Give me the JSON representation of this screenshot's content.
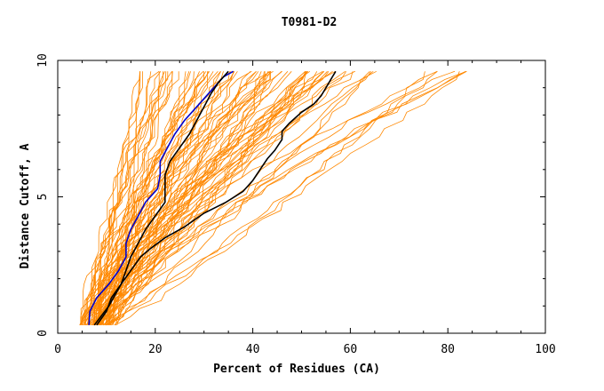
{
  "chart_data": {
    "type": "line",
    "title": "T0981-D2",
    "xlabel": "Percent of Residues (CA)",
    "ylabel": "Distance Cutoff, A",
    "xlim": [
      0,
      100
    ],
    "ylim": [
      0,
      10
    ],
    "x_ticks": [
      "0",
      "20",
      "40",
      "60",
      "80",
      "100"
    ],
    "y_ticks": [
      "0",
      "5",
      "10"
    ],
    "grid": false,
    "colors": {
      "background_curves": "#ff8800",
      "highlight_blue": "#0000cc",
      "highlight_black": "#000000"
    },
    "series": [
      {
        "color": "#0000cc",
        "x": [
          6.4,
          6.6,
          8.0,
          10.5,
          12.5,
          14.0,
          14.0,
          15.0,
          16.5,
          18.0,
          20.5,
          21.0,
          21.0,
          22.5,
          24.0,
          26.0,
          28.5,
          31.0,
          32.5,
          34.0,
          36.0
        ],
        "y": [
          0.3,
          0.8,
          1.3,
          1.8,
          2.3,
          2.8,
          3.3,
          3.8,
          4.3,
          4.8,
          5.3,
          5.8,
          6.3,
          6.8,
          7.3,
          7.8,
          8.3,
          8.8,
          9.1,
          9.4,
          9.6
        ]
      },
      {
        "color": "#000000",
        "x": [
          8.0,
          10.0,
          11.0,
          13.0,
          14.0,
          15.0,
          16.5,
          18.0,
          20.0,
          22.0,
          22.0,
          23.0,
          25.0,
          27.0,
          28.5,
          30.0,
          31.5,
          33.0,
          35.0
        ],
        "y": [
          0.3,
          0.8,
          1.3,
          1.8,
          2.3,
          2.8,
          3.3,
          3.8,
          4.3,
          4.8,
          5.8,
          6.3,
          6.8,
          7.3,
          7.8,
          8.3,
          8.8,
          9.2,
          9.6
        ]
      },
      {
        "color": "#000000",
        "x": [
          7.5,
          10.5,
          13.0,
          15.0,
          17.0,
          19.0,
          22.0,
          26.0,
          30.0,
          34.5,
          38.0,
          40.0,
          41.5,
          43.0,
          44.5,
          46.0,
          46.0,
          47.5,
          50.0,
          52.5,
          54.0,
          55.0,
          56.0,
          57.0
        ],
        "y": [
          0.3,
          1.0,
          1.8,
          2.3,
          2.8,
          3.1,
          3.5,
          3.9,
          4.4,
          4.8,
          5.2,
          5.6,
          6.0,
          6.4,
          6.7,
          7.1,
          7.4,
          7.7,
          8.1,
          8.4,
          8.7,
          9.0,
          9.3,
          9.6
        ]
      }
    ]
  }
}
